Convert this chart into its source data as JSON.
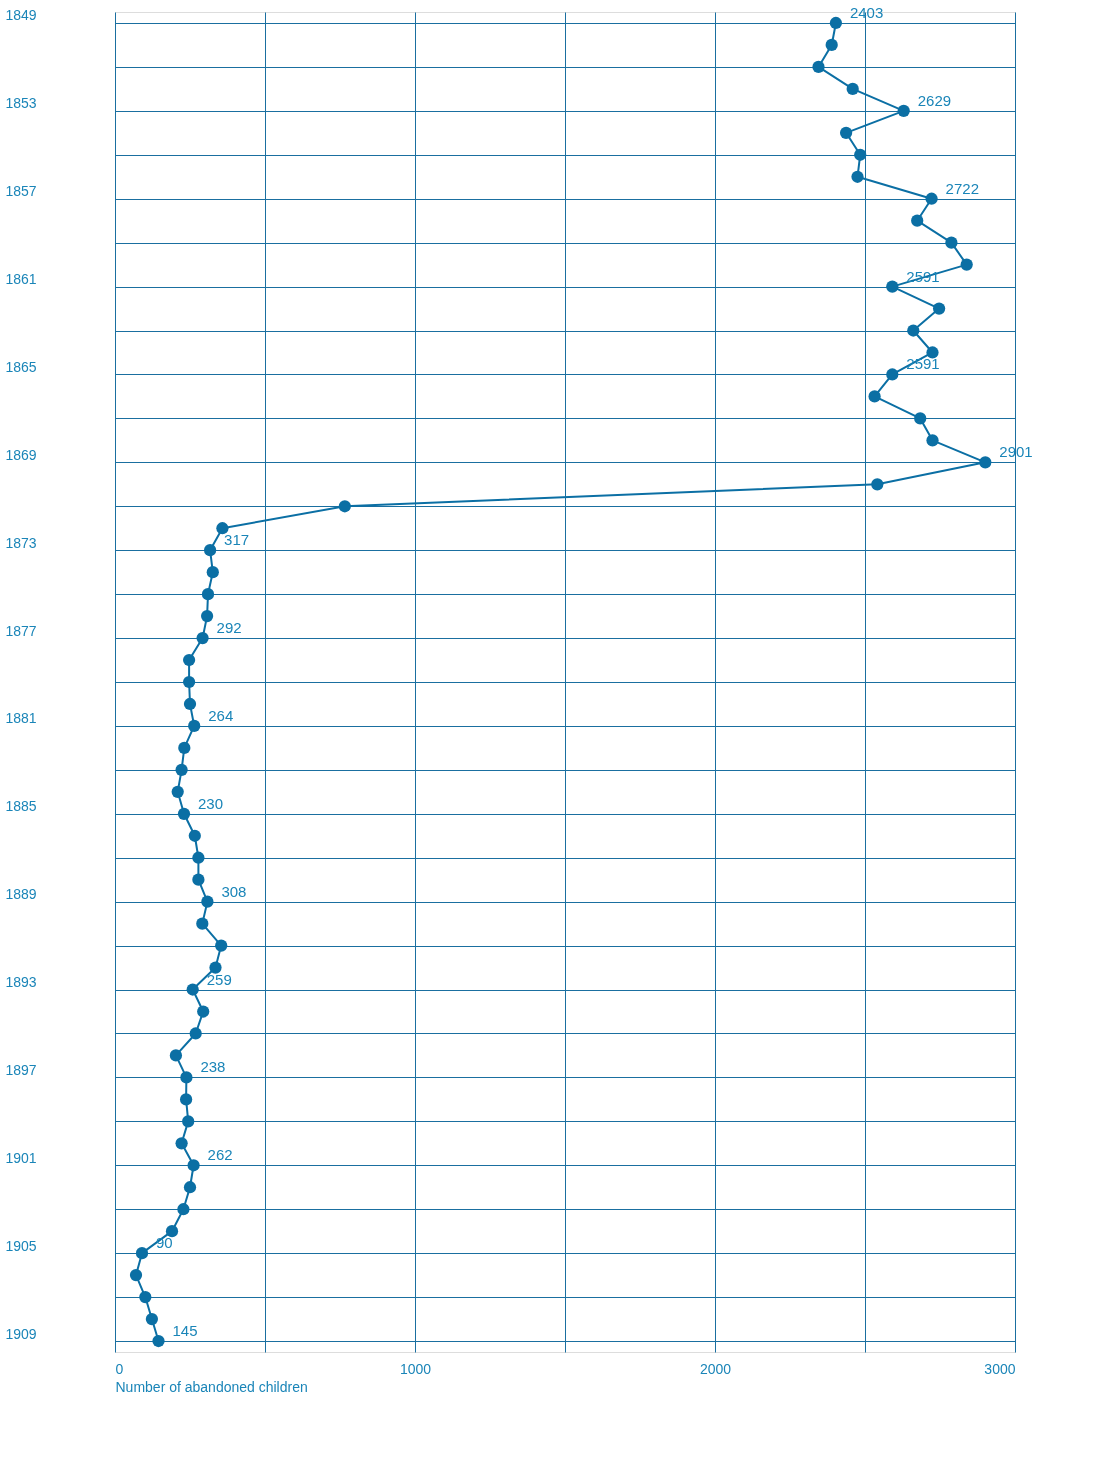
{
  "chart_data": {
    "type": "line",
    "orientation": "horizontal",
    "xlabel": "Number of abandoned children",
    "categories": [
      "1849",
      null,
      null,
      null,
      "1853",
      null,
      null,
      null,
      "1857",
      null,
      null,
      null,
      "1861",
      null,
      null,
      null,
      "1865",
      null,
      null,
      null,
      "1869",
      null,
      null,
      null,
      "1873",
      null,
      null,
      null,
      "1877",
      null,
      null,
      null,
      "1881",
      null,
      null,
      null,
      "1885",
      null,
      null,
      null,
      "1889",
      null,
      null,
      null,
      "1893",
      null,
      null,
      null,
      "1897",
      null,
      null,
      null,
      "1901",
      null,
      null,
      null,
      "1905",
      null,
      null,
      null,
      "1909"
    ],
    "series": [
      {
        "color": "#0b6fa4",
        "values": [
          2403,
          2389,
          2345,
          2459,
          2629,
          2437,
          2484,
          2475,
          2722,
          2674,
          2788,
          2839,
          2591,
          2747,
          2661,
          2725,
          2591,
          2532,
          2684,
          2725,
          2901,
          2541,
          766,
          358,
          317,
          326,
          310,
          307,
          292,
          247,
          247,
          250,
          264,
          231,
          222,
          209,
          230,
          266,
          278,
          278,
          308,
          291,
          354,
          335,
          259,
          294,
          269,
          203,
          238,
          237,
          244,
          222,
          262,
          250,
          228,
          190,
          90,
          70,
          101,
          123,
          145
        ],
        "value_labels": [
          "2403",
          null,
          null,
          null,
          "2629",
          null,
          null,
          null,
          "2722",
          null,
          null,
          null,
          "2591",
          null,
          null,
          null,
          "2591",
          null,
          null,
          null,
          "2901",
          null,
          null,
          null,
          "317",
          null,
          null,
          null,
          "292",
          null,
          null,
          null,
          "264",
          null,
          null,
          null,
          "230",
          null,
          null,
          null,
          "308",
          null,
          null,
          null,
          "259",
          null,
          null,
          null,
          "238",
          null,
          null,
          null,
          "262",
          null,
          null,
          null,
          "90",
          null,
          null,
          null,
          "145"
        ]
      }
    ],
    "xlim": [
      0,
      3000
    ],
    "xticks": [
      0,
      {
        "value": 500,
        "label": null
      },
      1000,
      {
        "value": 1500,
        "label": null
      },
      2000,
      {
        "value": 2500,
        "label": null
      },
      3000
    ],
    "marker": "circle",
    "grid": true
  }
}
